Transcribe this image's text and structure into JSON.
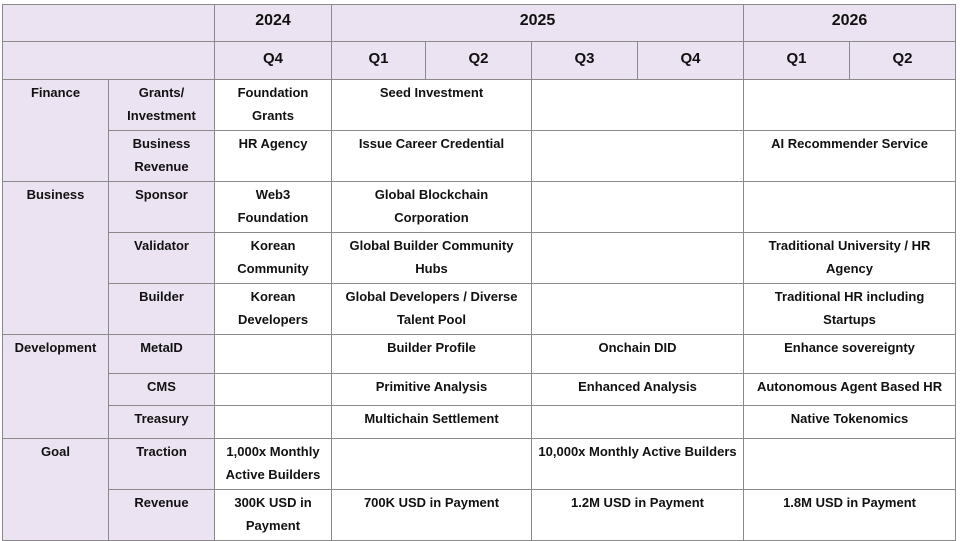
{
  "header": {
    "years": [
      "2024",
      "2025",
      "2026"
    ],
    "quarters": [
      "Q4",
      "Q1",
      "Q2",
      "Q3",
      "Q4",
      "Q1",
      "Q2"
    ]
  },
  "groups": {
    "finance": "Finance",
    "business": "Business",
    "development": "Development",
    "goal": "Goal"
  },
  "rows": {
    "grants": {
      "label": "Grants/ Investment",
      "q4_2024": "Foundation Grants",
      "h1_2025": "Seed Investment"
    },
    "business_revenue": {
      "label": "Business Revenue",
      "q4_2024": "HR Agency",
      "h1_2025": "Issue Career Credential",
      "h1_2026": "AI Recommender Service"
    },
    "sponsor": {
      "label": "Sponsor",
      "q4_2024": "Web3 Foundation",
      "h1_2025": "Global Blockchain Corporation"
    },
    "validator": {
      "label": "Validator",
      "q4_2024": "Korean Community",
      "h1_2025": "Global Builder Community Hubs",
      "h1_2026": "Traditional University / HR Agency"
    },
    "builder": {
      "label": "Builder",
      "q4_2024": "Korean Developers",
      "h1_2025": "Global Developers / Diverse Talent Pool",
      "h1_2026": "Traditional HR including Startups"
    },
    "metaid": {
      "label": "MetaID",
      "h1_2025": "Builder Profile",
      "h2_2025": "Onchain DID",
      "h1_2026": "Enhance sovereignty"
    },
    "cms": {
      "label": "CMS",
      "h1_2025": "Primitive Analysis",
      "h2_2025": "Enhanced Analysis",
      "h1_2026": "Autonomous Agent Based HR"
    },
    "treasury": {
      "label": "Treasury",
      "h1_2025": "Multichain Settlement",
      "h1_2026": "Native Tokenomics"
    },
    "traction": {
      "label": "Traction",
      "q4_2024": "1,000x Monthly Active Builders",
      "h2_2025": "10,000x Monthly Active Builders"
    },
    "revenue": {
      "label": "Revenue",
      "q4_2024": "300K USD in Payment",
      "h1_2025": "700K USD in Payment",
      "h2_2025": "1.2M USD in Payment",
      "h1_2026": "1.8M USD in Payment"
    }
  },
  "colors": {
    "header_bg": "#ebe3f1",
    "border": "#8a8a8a",
    "text": "#111111"
  }
}
